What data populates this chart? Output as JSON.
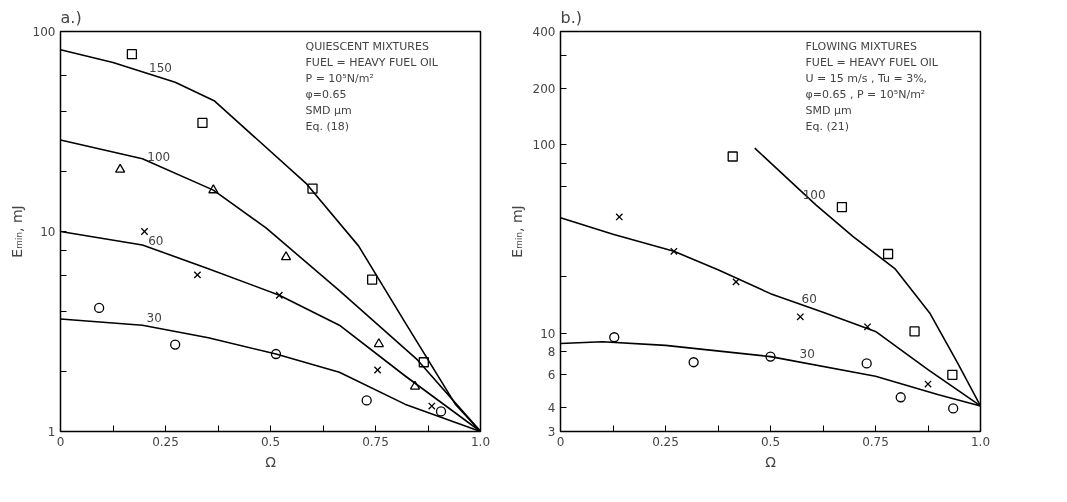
{
  "chart_data": [
    {
      "type": "line",
      "title": "a.)",
      "xlabel": "Ω",
      "ylabel": "Eₘᵢₙ, mJ",
      "log": "y",
      "grid": false,
      "xlim": [
        0,
        1
      ],
      "ylim": [
        1,
        100
      ],
      "xticks": [
        0,
        {
          "value": 0.125,
          "label": null
        },
        0.25,
        {
          "value": 0.375,
          "label": null
        },
        0.5,
        {
          "value": 0.625,
          "label": null
        },
        0.75,
        {
          "value": 0.875,
          "label": null
        },
        {
          "value": 1,
          "label": "1.0"
        }
      ],
      "yticks": [
        1,
        {
          "value": 2,
          "label": null
        },
        {
          "value": 4,
          "label": null
        },
        {
          "value": 6,
          "label": null
        },
        {
          "value": 8,
          "label": null
        },
        10,
        {
          "value": 20,
          "label": null
        },
        {
          "value": 40,
          "label": null
        },
        {
          "value": 60,
          "label": null
        },
        100
      ],
      "annotations": [
        "QUIESCENT MIXTURES",
        "FUEL = HEAVY FUEL OIL",
        "P = 10⁵N/m²",
        "φ=0.65",
        "SMD μm",
        "Eq. (18)",
        {
          "text": "150",
          "x": 0.238,
          "y": 59
        },
        {
          "text": "100",
          "x": 0.234,
          "y": 21.3
        },
        {
          "text": "60",
          "x": 0.227,
          "y": 8.1
        },
        {
          "text": "30",
          "x": 0.223,
          "y": 3.32
        }
      ],
      "series": [
        {
          "color": "#000000",
          "x": [
            0,
            0.125,
            0.273,
            0.367,
            0.586,
            0.71,
            0.82,
            0.94,
            1.0
          ],
          "values": [
            81,
            70,
            55.7,
            44.9,
            17.3,
            8.45,
            3.52,
            1.37,
            1
          ]
        },
        {
          "color": "#000000",
          "x": [
            0,
            0.195,
            0.364,
            0.49,
            0.664,
            0.85,
            1.0
          ],
          "values": [
            28.7,
            23.1,
            16.1,
            10.4,
            5.06,
            2.28,
            1
          ]
        },
        {
          "color": "#000000",
          "x": [
            0,
            0.195,
            0.352,
            0.521,
            0.664,
            0.82,
            1.0
          ],
          "values": [
            10,
            8.56,
            6.52,
            4.8,
            3.4,
            1.9,
            1
          ]
        },
        {
          "color": "#000000",
          "x": [
            0,
            0.195,
            0.352,
            0.513,
            0.664,
            0.82,
            1.0
          ],
          "values": [
            3.65,
            3.4,
            2.94,
            2.44,
            1.98,
            1.37,
            1
          ]
        },
        {
          "type": "scatter",
          "marker": "square",
          "color": "#000000",
          "x": [
            0.17,
            0.338,
            0.6,
            0.742,
            0.865
          ],
          "values": [
            77,
            34.9,
            16.4,
            5.75,
            2.22
          ]
        },
        {
          "type": "scatter",
          "marker": "triangle",
          "color": "#000000",
          "x": [
            0.142,
            0.364,
            0.537,
            0.758,
            0.844
          ],
          "values": [
            20.4,
            16.1,
            7.46,
            2.74,
            1.68
          ]
        },
        {
          "type": "scatter",
          "marker": "cross",
          "color": "#000000",
          "x": [
            0.2,
            0.326,
            0.521,
            0.755,
            0.884
          ],
          "values": [
            10,
            6.07,
            4.8,
            2.03,
            1.34
          ]
        },
        {
          "type": "scatter",
          "marker": "circle",
          "color": "#000000",
          "x": [
            0.092,
            0.273,
            0.513,
            0.729,
            0.906
          ],
          "values": [
            4.15,
            2.72,
            2.44,
            1.43,
            1.26
          ]
        }
      ]
    },
    {
      "type": "line",
      "title": "b.)",
      "xlabel": "Ω",
      "ylabel": "Eₘᵢₙ, mJ",
      "log": "y",
      "grid": false,
      "xlim": [
        0,
        1
      ],
      "ylim": [
        3,
        400
      ],
      "xticks": [
        0,
        {
          "value": 0.125,
          "label": null
        },
        0.25,
        {
          "value": 0.375,
          "label": null
        },
        0.5,
        {
          "value": 0.625,
          "label": null
        },
        0.75,
        {
          "value": 0.875,
          "label": null
        },
        {
          "value": 1,
          "label": "1.0"
        }
      ],
      "yticks": [
        3,
        4,
        6,
        8,
        10,
        {
          "value": 20,
          "label": null
        },
        {
          "value": 60,
          "label": null
        },
        {
          "value": 80,
          "label": null
        },
        100,
        200,
        {
          "value": 300,
          "label": null
        },
        400
      ],
      "annotations": [
        "FLOWING MIXTURES",
        "FUEL = HEAVY FUEL OIL",
        "U = 15 m/s , Tu = 3%,",
        "φ=0.65 , P = 10⁵N/m²",
        "SMD μm",
        "Eq. (21)",
        {
          "text": "100",
          "x": 0.604,
          "y": 48.5
        },
        {
          "text": "60",
          "x": 0.592,
          "y": 13.6
        },
        {
          "text": "30",
          "x": 0.5875,
          "y": 6.9
        }
      ],
      "series": [
        {
          "color": "#000000",
          "x": [
            0.4625,
            0.608,
            0.696,
            0.796,
            0.879,
            0.946,
            1.0
          ],
          "values": [
            96,
            48,
            32.6,
            22,
            12.8,
            6.9,
            4.1
          ]
        },
        {
          "color": "#000000",
          "x": [
            0,
            0.125,
            0.27,
            0.375,
            0.5,
            0.625,
            0.75,
            0.875,
            1.0
          ],
          "values": [
            41,
            33.5,
            27.2,
            21.7,
            16.2,
            12.9,
            10.2,
            6.4,
            4.1
          ]
        },
        {
          "color": "#000000",
          "x": [
            0,
            0.1,
            0.25,
            0.5,
            0.75,
            0.9,
            1.0
          ],
          "values": [
            8.8,
            9.0,
            8.6,
            7.5,
            5.9,
            4.7,
            4.1
          ]
        },
        {
          "type": "scatter",
          "marker": "square",
          "color": "#000000",
          "x": [
            0.41,
            0.67,
            0.78,
            0.843,
            0.933
          ],
          "values": [
            86.7,
            46.7,
            26.3,
            10.2,
            6.0
          ]
        },
        {
          "type": "scatter",
          "marker": "cross",
          "color": "#000000",
          "x": [
            0.14,
            0.27,
            0.418,
            0.571,
            0.731,
            0.875
          ],
          "values": [
            41.4,
            27.2,
            18.7,
            12.2,
            10.8,
            5.36
          ]
        },
        {
          "type": "scatter",
          "marker": "circle",
          "color": "#000000",
          "x": [
            0.128,
            0.317,
            0.5,
            0.729,
            0.81,
            0.935
          ],
          "values": [
            9.5,
            7.0,
            7.5,
            6.9,
            4.56,
            3.98
          ]
        }
      ]
    }
  ]
}
